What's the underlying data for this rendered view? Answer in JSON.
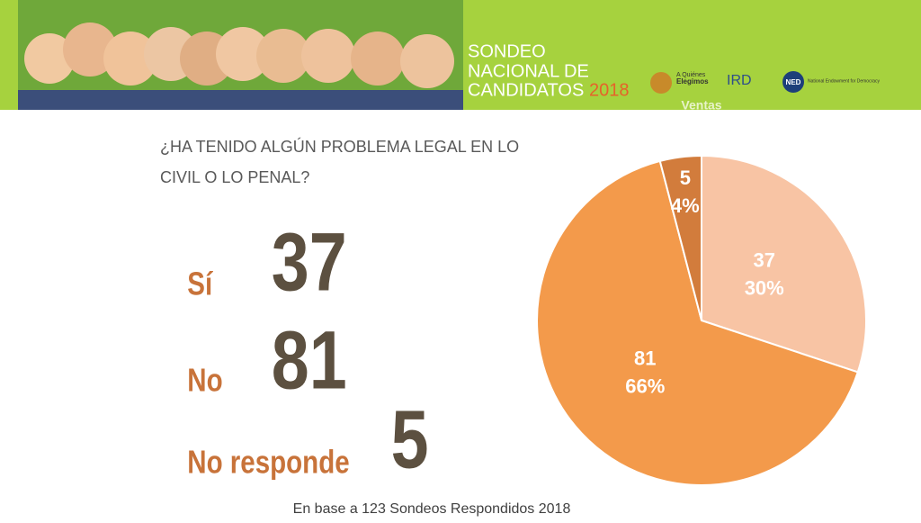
{
  "header": {
    "title_lines": [
      "SONDEO",
      "NACIONAL DE",
      "CANDIDATOS"
    ],
    "year": "2018",
    "logo_1": [
      "A Quiénes",
      "Elegimos"
    ],
    "logo_2": "IRD",
    "logo_3": "NED",
    "logo_3_text": "National Endowment for Democracy",
    "watermark": "Ventas"
  },
  "question": [
    "¿HA TENIDO ALGÚN PROBLEMA LEGAL EN LO",
    "CIVIL O LO PENAL?"
  ],
  "chart_data": {
    "type": "pie",
    "categories": [
      "Sí",
      "No",
      "No responde"
    ],
    "values": [
      37,
      81,
      5
    ],
    "percent_labels": [
      "30%",
      "66%",
      "4%"
    ],
    "colors": [
      "#f8c4a4",
      "#f39a4b",
      "#d27c3c"
    ]
  },
  "footer": "En base a 123 Sondeos Respondidos 2018"
}
